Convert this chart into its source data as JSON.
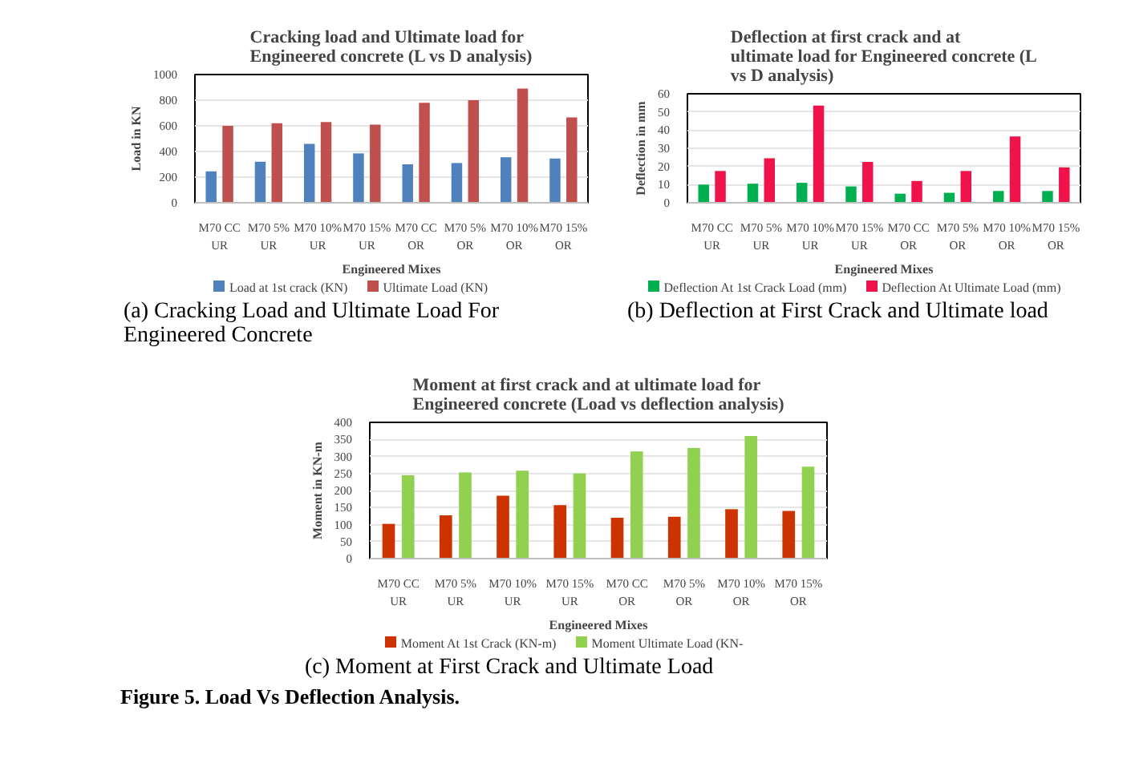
{
  "chart_data": [
    {
      "type": "bar",
      "title": "Cracking load and Ultimate load for Engineered concrete (L vs D analysis)",
      "xlabel": "Engineered Mixes",
      "ylabel": "Load in KN",
      "categories": [
        "M70 CC UR",
        "M70 5% UR",
        "M70 10% UR",
        "M70 15% UR",
        "M70 CC OR",
        "M70 5% OR",
        "M70 10% OR",
        "M70 15% OR"
      ],
      "series": [
        {
          "name": "Load at 1st crack (KN)",
          "color": "#4f81bd",
          "values": [
            245,
            320,
            460,
            385,
            300,
            310,
            355,
            345
          ]
        },
        {
          "name": "Ultimate Load (KN)",
          "color": "#c0504d",
          "values": [
            600,
            620,
            630,
            610,
            780,
            800,
            890,
            665
          ]
        }
      ],
      "ylim": [
        0,
        1000
      ],
      "yticks": [
        0,
        200,
        400,
        600,
        800,
        1000
      ],
      "grid": "y",
      "legend": "bottom",
      "annotations": [
        "(a) Cracking Load and Ultimate Load For Engineered Concrete"
      ]
    },
    {
      "type": "bar",
      "title": "Deflection at first crack and at ultimate load for Engineered concrete (L vs D analysis)",
      "xlabel": "Engineered Mixes",
      "ylabel": "Deflection in mm",
      "categories": [
        "M70 CC UR",
        "M70 5% UR",
        "M70 10% UR",
        "M70 15% UR",
        "M70 CC OR",
        "M70 5% OR",
        "M70 10% OR",
        "M70 15% OR"
      ],
      "series": [
        {
          "name": "Deflection At 1st Crack Load (mm)",
          "color": "#00b050",
          "values": [
            10,
            10.5,
            11,
            9,
            5,
            5.5,
            6.5,
            6.5
          ]
        },
        {
          "name": "Deflection At Ultimate Load (mm)",
          "color": "#f0124a",
          "values": [
            17.5,
            24.5,
            53.5,
            22.5,
            12,
            17.5,
            36.5,
            19.5
          ]
        }
      ],
      "ylim": [
        0,
        60
      ],
      "yticks": [
        0,
        10,
        20,
        30,
        40,
        50,
        60
      ],
      "grid": "y",
      "legend": "bottom",
      "annotations": [
        "(b) Deflection at First Crack and Ultimate load"
      ]
    },
    {
      "type": "bar",
      "title": "Moment at first crack and at ultimate load for Engineered concrete (Load vs deflection analysis)",
      "xlabel": "Engineered Mixes",
      "ylabel": "Moment in KN-m",
      "categories": [
        "M70 CC UR",
        "M70 5% UR",
        "M70 10% UR",
        "M70 15% UR",
        "M70 CC OR",
        "M70 5% OR",
        "M70 10% OR",
        "M70 15% OR"
      ],
      "series": [
        {
          "name": "Moment At 1st Crack (KN-m)",
          "color": "#cc3300",
          "values": [
            102,
            127,
            185,
            157,
            120,
            123,
            145,
            140
          ]
        },
        {
          "name": "Moment Ultimate Load (KN-",
          "color": "#92d050",
          "values": [
            245,
            253,
            258,
            250,
            315,
            325,
            360,
            270
          ]
        }
      ],
      "ylim": [
        0,
        400
      ],
      "yticks": [
        0,
        50,
        100,
        150,
        200,
        250,
        300,
        350,
        400
      ],
      "grid": "y",
      "legend": "bottom",
      "annotations": [
        "(c) Moment at First Crack and Ultimate Load",
        "Figure 5. Load Vs Deflection Analysis."
      ]
    }
  ]
}
